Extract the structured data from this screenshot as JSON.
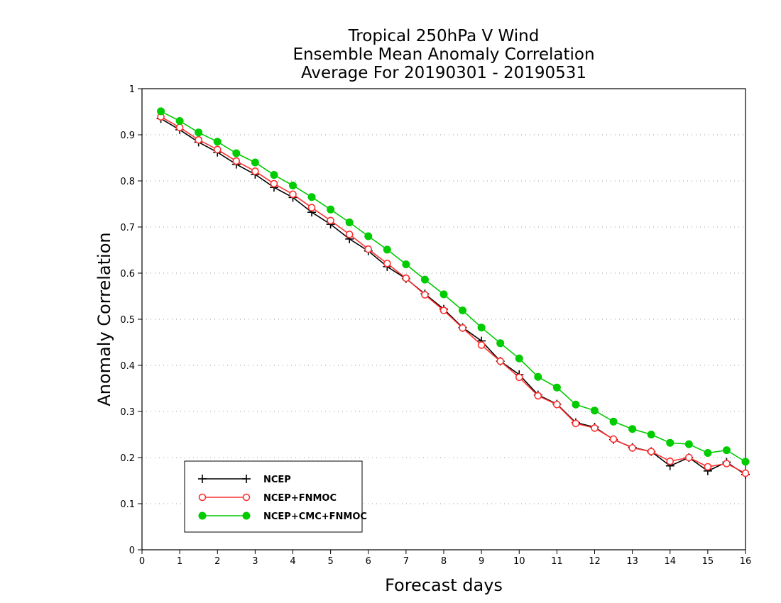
{
  "chart_data": {
    "type": "line",
    "title_lines": [
      "Tropical 250hPa V Wind",
      "Ensemble Mean Anomaly Correlation",
      "Average For 20190301 - 20190531"
    ],
    "xlabel": "Forecast days",
    "ylabel": "Anomaly Correlation",
    "xlim": [
      0,
      16
    ],
    "ylim": [
      0,
      1
    ],
    "x_ticks": [
      "0",
      "1",
      "2",
      "3",
      "4",
      "5",
      "6",
      "7",
      "8",
      "9",
      "10",
      "11",
      "12",
      "13",
      "14",
      "15",
      "16"
    ],
    "y_ticks": [
      "0",
      "0.1",
      "0.2",
      "0.3",
      "0.4",
      "0.5",
      "0.6",
      "0.7",
      "0.8",
      "0.9",
      "1"
    ],
    "grid": "dotted-horizontal",
    "legend_position": "bottom-left",
    "x": [
      0.5,
      1,
      1.5,
      2,
      2.5,
      3,
      3.5,
      4,
      4.5,
      5,
      5.5,
      6,
      6.5,
      7,
      7.5,
      8,
      8.5,
      9,
      9.5,
      10,
      10.5,
      11,
      11.5,
      12,
      12.5,
      13,
      13.5,
      14,
      14.5,
      15,
      15.5,
      16
    ],
    "series": [
      {
        "name": "NCEP",
        "color": "#000000",
        "marker": "plus",
        "values": [
          0.935,
          0.911,
          0.884,
          0.862,
          0.836,
          0.814,
          0.786,
          0.764,
          0.732,
          0.706,
          0.674,
          0.648,
          0.614,
          0.588,
          0.555,
          0.522,
          0.482,
          0.453,
          0.409,
          0.38,
          0.336,
          0.316,
          0.276,
          0.266,
          0.239,
          0.222,
          0.213,
          0.182,
          0.2,
          0.171,
          0.19,
          0.163
        ]
      },
      {
        "name": "NCEP+FNMOC",
        "color": "#ff3030",
        "marker": "open-circle",
        "values": [
          0.939,
          0.916,
          0.889,
          0.868,
          0.843,
          0.821,
          0.794,
          0.771,
          0.742,
          0.714,
          0.684,
          0.652,
          0.621,
          0.589,
          0.553,
          0.519,
          0.481,
          0.444,
          0.409,
          0.374,
          0.334,
          0.315,
          0.274,
          0.264,
          0.24,
          0.221,
          0.213,
          0.192,
          0.2,
          0.18,
          0.187,
          0.166
        ]
      },
      {
        "name": "NCEP+CMC+FNMOC",
        "color": "#00cc00",
        "marker": "filled-circle",
        "values": [
          0.951,
          0.93,
          0.905,
          0.885,
          0.86,
          0.84,
          0.813,
          0.79,
          0.765,
          0.738,
          0.71,
          0.68,
          0.651,
          0.619,
          0.586,
          0.554,
          0.519,
          0.482,
          0.448,
          0.415,
          0.375,
          0.352,
          0.315,
          0.302,
          0.278,
          0.262,
          0.25,
          0.232,
          0.229,
          0.21,
          0.216,
          0.191
        ]
      }
    ]
  }
}
